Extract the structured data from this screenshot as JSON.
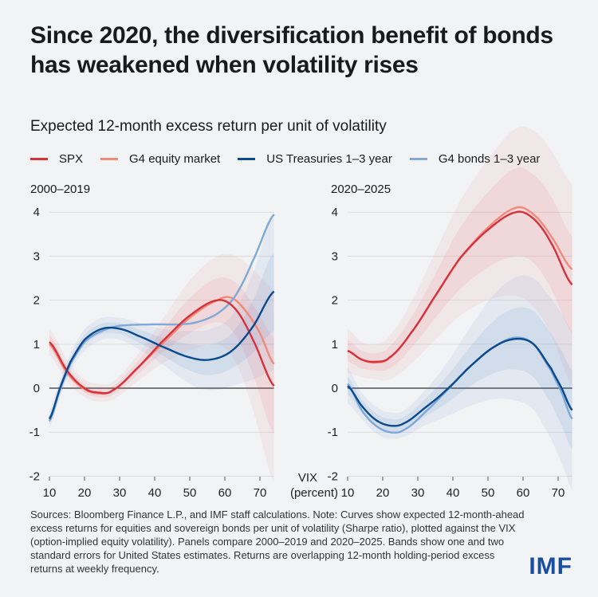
{
  "title": "Since 2020, the diversification benefit of bonds has weakened when volatility rises",
  "subtitle": "Expected 12-month excess return per unit of volatility",
  "legend": [
    {
      "name": "SPX",
      "color": "#d6323c"
    },
    {
      "name": "G4 equity market",
      "color": "#f08a7a"
    },
    {
      "name": "US Treasuries 1–3 year",
      "color": "#0b4a8c"
    },
    {
      "name": "G4 bonds 1–3 year",
      "color": "#7fa9d6"
    }
  ],
  "x_axis_label": [
    "VIX",
    "(percent)"
  ],
  "notes": "Sources: Bloomberg Finance L.P., and IMF staff calculations. Note: Curves show expected 12-month-ahead excess returns for equities and sovereign bonds per unit of volatility (Sharpe ratio), plotted against the VIX (option-implied equity volatility). Panels compare 2000–2019 and 2020–2025. Bands show one and two standard errors for United States estimates. Returns are overlapping 12-month holding-period excess returns at weekly frequency.",
  "logo": "IMF",
  "chart_data": [
    {
      "type": "line",
      "title": "2000–2019",
      "xlim": [
        10,
        74
      ],
      "ylim": [
        -2,
        4
      ],
      "xticks": [
        10,
        20,
        30,
        40,
        50,
        60,
        70
      ],
      "yticks": [
        -2,
        -1,
        0,
        1,
        2,
        3,
        4
      ],
      "grid": true,
      "series": [
        {
          "name": "SPX",
          "x": [
            10,
            15,
            20,
            24,
            28,
            35,
            42,
            50,
            58,
            63,
            68,
            74
          ],
          "y": [
            1.05,
            0.4,
            0.0,
            -0.1,
            -0.05,
            0.45,
            1.05,
            1.65,
            2.0,
            1.8,
            1.1,
            0.05
          ],
          "band_1se": [
            0.15,
            0.12,
            0.1,
            0.1,
            0.1,
            0.15,
            0.25,
            0.4,
            0.5,
            0.6,
            0.8,
            1.1
          ],
          "band_2se": [
            0.3,
            0.25,
            0.2,
            0.2,
            0.2,
            0.3,
            0.5,
            0.8,
            1.0,
            1.2,
            1.6,
            2.2
          ]
        },
        {
          "name": "G4 equity market",
          "x": [
            10,
            15,
            20,
            24,
            28,
            35,
            42,
            50,
            58,
            62,
            66,
            70,
            74
          ],
          "y": [
            1.0,
            0.35,
            -0.02,
            -0.12,
            -0.05,
            0.45,
            1.0,
            1.6,
            2.0,
            2.05,
            1.75,
            1.25,
            0.55
          ]
        },
        {
          "name": "US Treasuries 1–3 year",
          "x": [
            10,
            13,
            16,
            20,
            25,
            30,
            35,
            42,
            50,
            56,
            62,
            68,
            74
          ],
          "y": [
            -0.7,
            0.0,
            0.6,
            1.1,
            1.35,
            1.35,
            1.2,
            0.95,
            0.7,
            0.65,
            0.85,
            1.4,
            2.2
          ],
          "band_1se": [
            0.1,
            0.1,
            0.1,
            0.12,
            0.12,
            0.12,
            0.15,
            0.2,
            0.3,
            0.35,
            0.4,
            0.6,
            0.9
          ],
          "band_2se": [
            0.2,
            0.2,
            0.2,
            0.25,
            0.25,
            0.25,
            0.3,
            0.4,
            0.6,
            0.7,
            0.8,
            1.2,
            1.8
          ]
        },
        {
          "name": "G4 bonds 1–3 year",
          "x": [
            10,
            13,
            16,
            20,
            25,
            30,
            40,
            47,
            52,
            58,
            63,
            68,
            74
          ],
          "y": [
            -0.75,
            -0.05,
            0.55,
            1.05,
            1.3,
            1.42,
            1.45,
            1.45,
            1.5,
            1.7,
            2.1,
            2.9,
            3.95
          ]
        }
      ]
    },
    {
      "type": "line",
      "title": "2020–2025",
      "xlim": [
        10,
        74
      ],
      "ylim": [
        -2,
        4
      ],
      "xticks": [
        10,
        20,
        30,
        40,
        50,
        60,
        70
      ],
      "yticks": [
        -2,
        -1,
        0,
        1,
        2,
        3,
        4
      ],
      "grid": true,
      "series": [
        {
          "name": "SPX",
          "x": [
            10,
            14,
            18,
            22,
            28,
            35,
            42,
            50,
            58,
            63,
            68,
            74
          ],
          "y": [
            0.85,
            0.65,
            0.6,
            0.7,
            1.25,
            2.1,
            2.95,
            3.6,
            4.0,
            3.85,
            3.3,
            2.35
          ],
          "band_1se": [
            0.25,
            0.2,
            0.2,
            0.25,
            0.35,
            0.5,
            0.7,
            0.85,
            1.0,
            1.0,
            1.05,
            1.1
          ],
          "band_2se": [
            0.5,
            0.4,
            0.4,
            0.5,
            0.7,
            1.0,
            1.3,
            1.6,
            1.9,
            2.0,
            2.1,
            2.3
          ]
        },
        {
          "name": "G4 equity market",
          "x": [
            10,
            14,
            18,
            22,
            28,
            35,
            42,
            50,
            58,
            63,
            68,
            74
          ],
          "y": [
            0.85,
            0.65,
            0.58,
            0.7,
            1.25,
            2.1,
            2.95,
            3.65,
            4.1,
            3.95,
            3.45,
            2.7
          ]
        },
        {
          "name": "US Treasuries 1–3 year",
          "x": [
            10,
            14,
            18,
            22,
            26,
            32,
            38,
            45,
            52,
            58,
            63,
            68,
            71,
            74
          ],
          "y": [
            0.05,
            -0.4,
            -0.72,
            -0.85,
            -0.8,
            -0.45,
            -0.05,
            0.5,
            0.95,
            1.12,
            1.0,
            0.45,
            0.0,
            -0.5
          ],
          "band_1se": [
            0.2,
            0.15,
            0.15,
            0.15,
            0.15,
            0.2,
            0.3,
            0.45,
            0.6,
            0.7,
            0.75,
            0.8,
            0.85,
            0.9
          ],
          "band_2se": [
            0.4,
            0.3,
            0.3,
            0.3,
            0.3,
            0.4,
            0.6,
            0.9,
            1.2,
            1.4,
            1.5,
            1.6,
            1.7,
            1.8
          ]
        },
        {
          "name": "G4 bonds 1–3 year",
          "x": [
            10,
            14,
            18,
            22,
            26,
            32,
            39,
            45,
            52,
            58,
            63,
            68,
            71,
            74
          ],
          "y": [
            0.1,
            -0.5,
            -0.85,
            -1.0,
            -0.95,
            -0.55,
            0.0,
            0.5,
            0.95,
            1.15,
            1.0,
            0.4,
            -0.1,
            -0.7
          ]
        }
      ]
    }
  ]
}
